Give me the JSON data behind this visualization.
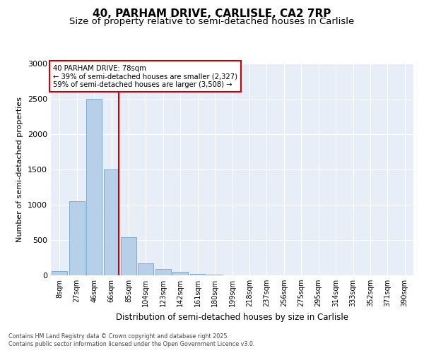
{
  "title1": "40, PARHAM DRIVE, CARLISLE, CA2 7RP",
  "title2": "Size of property relative to semi-detached houses in Carlisle",
  "xlabel": "Distribution of semi-detached houses by size in Carlisle",
  "ylabel": "Number of semi-detached properties",
  "tick_labels": [
    "8sqm",
    "27sqm",
    "46sqm",
    "66sqm",
    "85sqm",
    "104sqm",
    "123sqm",
    "142sqm",
    "161sqm",
    "180sqm",
    "199sqm",
    "218sqm",
    "237sqm",
    "256sqm",
    "275sqm",
    "295sqm",
    "314sqm",
    "333sqm",
    "352sqm",
    "371sqm",
    "390sqm"
  ],
  "values": [
    60,
    1050,
    2500,
    1500,
    540,
    175,
    90,
    55,
    25,
    10,
    5,
    3,
    2,
    2,
    1,
    1,
    1,
    0,
    0,
    0,
    0
  ],
  "bar_color": "#b8cfe8",
  "bar_edge_color": "#7aadd4",
  "property_size_idx": 3,
  "annotation_title": "40 PARHAM DRIVE: 78sqm",
  "annotation_line1": "← 39% of semi-detached houses are smaller (2,327)",
  "annotation_line2": "59% of semi-detached houses are larger (3,508) →",
  "vline_color": "#cc0000",
  "annotation_box_color": "#ffffff",
  "annotation_box_edge": "#cc0000",
  "ylim": [
    0,
    3000
  ],
  "yticks": [
    0,
    500,
    1000,
    1500,
    2000,
    2500,
    3000
  ],
  "bg_color": "#e8eef8",
  "footer1": "Contains HM Land Registry data © Crown copyright and database right 2025.",
  "footer2": "Contains public sector information licensed under the Open Government Licence v3.0.",
  "title1_fontsize": 11,
  "title2_fontsize": 9.5
}
